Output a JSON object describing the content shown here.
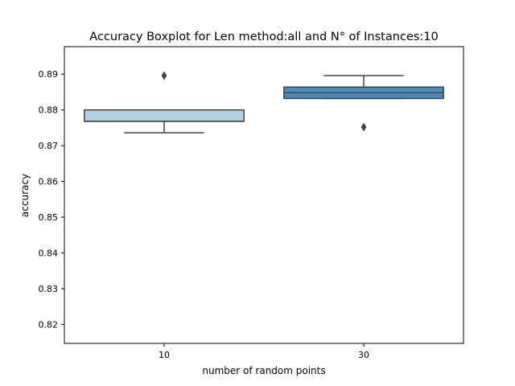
{
  "chart_data": {
    "type": "box",
    "title": "Accuracy Boxplot for Len method:all and N° of Instances:10",
    "xlabel": "number of random points",
    "ylabel": "accuracy",
    "categories": [
      "10",
      "30"
    ],
    "ylim": [
      0.8147,
      0.8977
    ],
    "yticks": [
      0.82,
      0.83,
      0.84,
      0.85,
      0.86,
      0.87,
      0.88,
      0.89
    ],
    "ytick_labels": [
      "0.82",
      "0.83",
      "0.84",
      "0.85",
      "0.86",
      "0.87",
      "0.88",
      "0.89"
    ],
    "boxes": [
      {
        "category": "10",
        "whisker_low": 0.8736,
        "q1": 0.8768,
        "median": 0.8768,
        "q3": 0.88,
        "whisker_high": 0.88,
        "outliers": [
          0.8896
        ],
        "color": "#b2d0e3"
      },
      {
        "category": "30",
        "whisker_low": 0.8832,
        "q1": 0.8832,
        "median": 0.8848,
        "q3": 0.8864,
        "whisker_high": 0.8896,
        "outliers": [
          0.8752
        ],
        "color": "#4a8bbd"
      }
    ],
    "line_color": "#444444",
    "grid": false,
    "legend": "none"
  }
}
